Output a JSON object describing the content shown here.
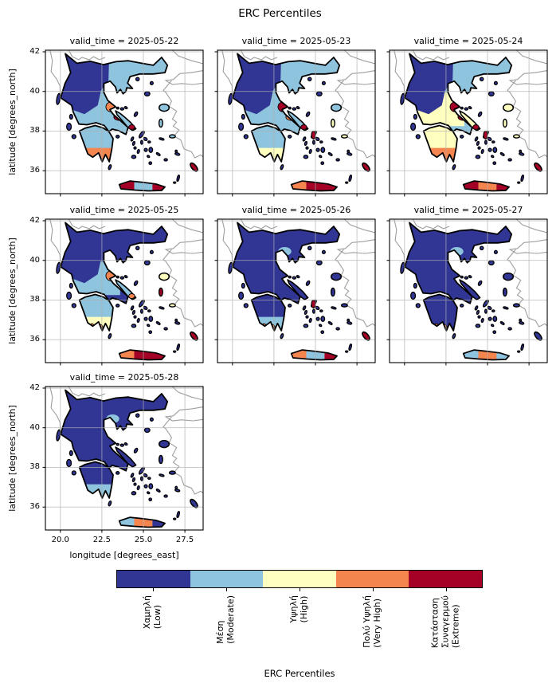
{
  "figure": {
    "suptitle": "ERC Percentiles",
    "xlabel": "longitude [degrees_east]",
    "ylabel": "latitude [degrees_north]",
    "x_ticks": [
      "20.0",
      "22.5",
      "25.0",
      "27.5"
    ],
    "y_ticks": [
      "42",
      "40",
      "38",
      "36"
    ]
  },
  "colorbar": {
    "label": "ERC Percentiles",
    "categories": [
      {
        "name": "low",
        "lines": [
          "Χαμηλή",
          "(Low)"
        ],
        "color": "#313695"
      },
      {
        "name": "moderate",
        "lines": [
          "Μέση",
          "(Moderate)"
        ],
        "color": "#8ec4dd"
      },
      {
        "name": "high",
        "lines": [
          "Υψηλή",
          "(High)"
        ],
        "color": "#ffffbf"
      },
      {
        "name": "very-high",
        "lines": [
          "Πολύ Υψηλή",
          "(Very High)"
        ],
        "color": "#f5854e"
      },
      {
        "name": "extreme",
        "lines": [
          "Κατάσταση",
          "Συναγερμού",
          "(Extreme)"
        ],
        "color": "#a50026"
      }
    ]
  },
  "chart_data": {
    "type": "heatmap",
    "variable": "ERC Percentiles",
    "facet_dim": "valid_time",
    "region": "Greece",
    "lon_range": [
      19.1,
      28.6
    ],
    "lat_range": [
      34.84,
      42.08
    ],
    "gridlines": {
      "lon": [
        20.0,
        22.5,
        25.0,
        27.5
      ],
      "lat": [
        36,
        38,
        40,
        42
      ]
    },
    "categories": [
      "Low",
      "Moderate",
      "High",
      "Very High",
      "Extreme"
    ],
    "panels": [
      {
        "title": "valid_time = 2025-05-22",
        "date": "2025-05-22",
        "zones": {
          "mainland": 1,
          "nw": 0,
          "ne": 1,
          "central": 1,
          "pelo": 1,
          "pelo_s": 3,
          "pelo_tip": null,
          "wpelo": null,
          "volos": 3,
          "east": 4,
          "thess": null,
          "evia": 1,
          "evia_spot": 4,
          "attica": null,
          "crete": 3,
          "crete_w": 4,
          "crete_mid": 1,
          "crete_e": 4,
          "rhodes": 4,
          "lesbos": 1,
          "chios": 1,
          "samos": 1,
          "islands": 0
        }
      },
      {
        "title": "valid_time = 2025-05-23",
        "date": "2025-05-23",
        "zones": {
          "mainland": 1,
          "nw": 0,
          "ne": 1,
          "central": 1,
          "pelo": 1,
          "pelo_s": 2,
          "pelo_tip": null,
          "wpelo": null,
          "volos": 4,
          "east": 3,
          "thess": null,
          "evia": 1,
          "evia_spot": 4,
          "attica": 4,
          "crete": 4,
          "crete_w": 3,
          "crete_mid": 4,
          "crete_e": 4,
          "rhodes": 4,
          "lesbos": 1,
          "chios": 2,
          "samos": 2,
          "islands": 0
        }
      },
      {
        "title": "valid_time = 2025-05-24",
        "date": "2025-05-24",
        "zones": {
          "mainland": 1,
          "nw": 0,
          "ne": 1,
          "central": 2,
          "pelo": 2,
          "pelo_s": 3,
          "pelo_tip": null,
          "wpelo": null,
          "volos": 4,
          "east": 4,
          "thess": null,
          "evia": 2,
          "evia_spot": 4,
          "attica": 4,
          "crete": 4,
          "crete_w": 4,
          "crete_mid": 3,
          "crete_e": 4,
          "rhodes": 4,
          "lesbos": 2,
          "chios": 2,
          "samos": 2,
          "islands": 0
        }
      },
      {
        "title": "valid_time = 2025-05-25",
        "date": "2025-05-25",
        "zones": {
          "mainland": 0,
          "nw": 0,
          "ne": 0,
          "central": 1,
          "pelo": 1,
          "pelo_s": 2,
          "pelo_tip": 3,
          "wpelo": null,
          "volos": 3,
          "east": null,
          "thess": null,
          "evia": 1,
          "evia_spot": 3,
          "attica": null,
          "crete": 4,
          "crete_w": 3,
          "crete_mid": 4,
          "crete_e": 4,
          "rhodes": 4,
          "lesbos": 2,
          "chios": 4,
          "samos": 2,
          "islands": 0
        }
      },
      {
        "title": "valid_time = 2025-05-26",
        "date": "2025-05-26",
        "zones": {
          "mainland": 0,
          "nw": null,
          "ne": null,
          "central": null,
          "pelo": 0,
          "pelo_s": 1,
          "pelo_tip": 3,
          "wpelo": 3,
          "volos": null,
          "east": null,
          "thess": 1,
          "evia": 0,
          "evia_spot": null,
          "attica": 4,
          "crete": 2,
          "crete_w": 3,
          "crete_mid": 1,
          "crete_e": 4,
          "rhodes": 4,
          "lesbos": 0,
          "chios": 0,
          "samos": 0,
          "islands": 0
        }
      },
      {
        "title": "valid_time = 2025-05-27",
        "date": "2025-05-27",
        "zones": {
          "mainland": 0,
          "nw": null,
          "ne": null,
          "central": null,
          "pelo": 0,
          "pelo_s": 0,
          "pelo_tip": 3,
          "wpelo": 3,
          "volos": null,
          "east": null,
          "thess": 1,
          "evia": 0,
          "evia_spot": null,
          "attica": null,
          "crete": 1,
          "crete_w": 1,
          "crete_mid": 3,
          "crete_e": 1,
          "rhodes": 0,
          "lesbos": 0,
          "chios": 0,
          "samos": 0,
          "islands": 0
        }
      },
      {
        "title": "valid_time = 2025-05-28",
        "date": "2025-05-28",
        "zones": {
          "mainland": 0,
          "nw": null,
          "ne": null,
          "central": null,
          "pelo": 0,
          "pelo_s": 1,
          "pelo_tip": null,
          "wpelo": null,
          "volos": null,
          "east": null,
          "thess": 1,
          "evia": 0,
          "evia_spot": null,
          "attica": null,
          "crete": 1,
          "crete_w": 1,
          "crete_mid": 3,
          "crete_e": 0,
          "rhodes": 0,
          "lesbos": 0,
          "chios": 0,
          "samos": 0,
          "islands": 0
        }
      }
    ]
  },
  "map_style": {
    "greece_outline": "#000000",
    "neighbor_coastline": "#9e9e9e",
    "gridline": "#b0b0b0",
    "sea": "#ffffff"
  }
}
